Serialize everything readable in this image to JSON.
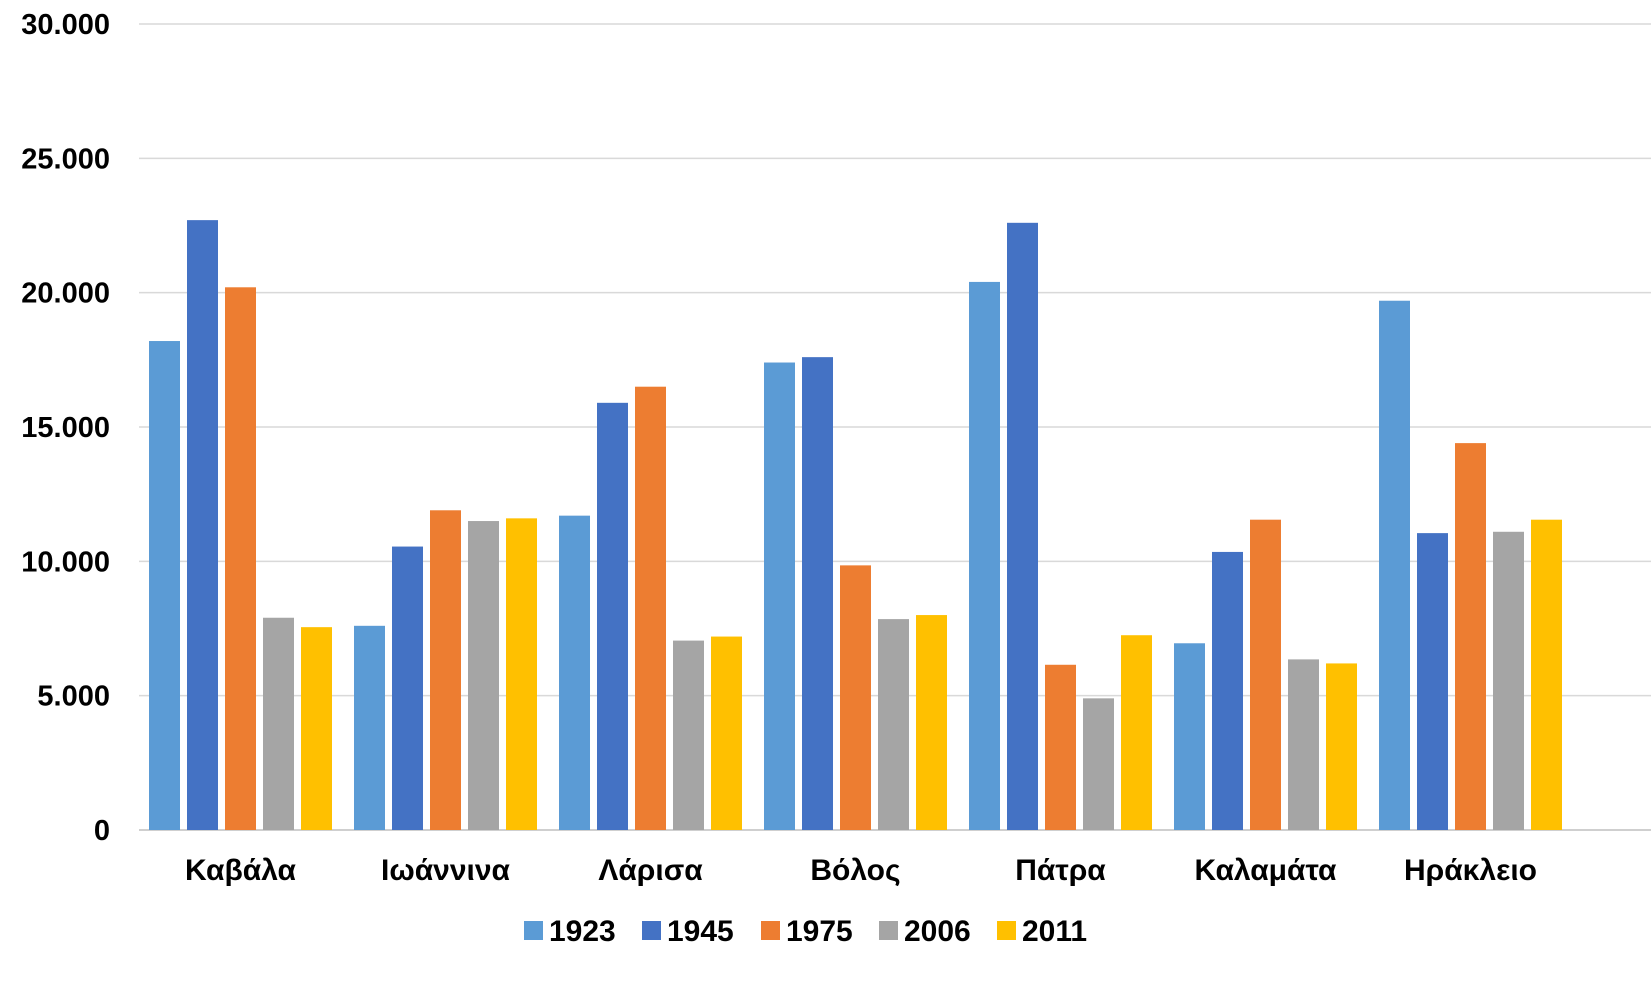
{
  "chart_data": {
    "type": "bar",
    "title": "",
    "xlabel": "",
    "ylabel": "",
    "ylim": [
      0,
      30000
    ],
    "y_ticks": [
      0,
      5000,
      10000,
      15000,
      20000,
      25000,
      30000
    ],
    "y_tick_labels": [
      "0",
      "5.000",
      "10.000",
      "15.000",
      "20.000",
      "25.000",
      "30.000"
    ],
    "grid": true,
    "legend_position": "bottom",
    "categories": [
      "Καβάλα",
      "Ιωάννινα",
      "Λάρισα",
      "Βόλος",
      "Πάτρα",
      "Καλαμάτα",
      "Ηράκλειο"
    ],
    "series": [
      {
        "name": "1923",
        "color": "#5b9bd5",
        "values": [
          18200,
          7600,
          11700,
          17400,
          20400,
          6950,
          19700
        ]
      },
      {
        "name": "1945",
        "color": "#4472c4",
        "values": [
          22700,
          10550,
          15900,
          17600,
          22600,
          10350,
          11050
        ]
      },
      {
        "name": "1975",
        "color": "#ed7d31",
        "values": [
          20200,
          11900,
          16500,
          9850,
          6150,
          11550,
          14400
        ]
      },
      {
        "name": "2006",
        "color": "#a5a5a5",
        "values": [
          7900,
          11500,
          7050,
          7850,
          4900,
          6350,
          11100
        ]
      },
      {
        "name": "2011",
        "color": "#ffc000",
        "values": [
          7550,
          11600,
          7200,
          8000,
          7250,
          6200,
          11550
        ]
      }
    ]
  }
}
